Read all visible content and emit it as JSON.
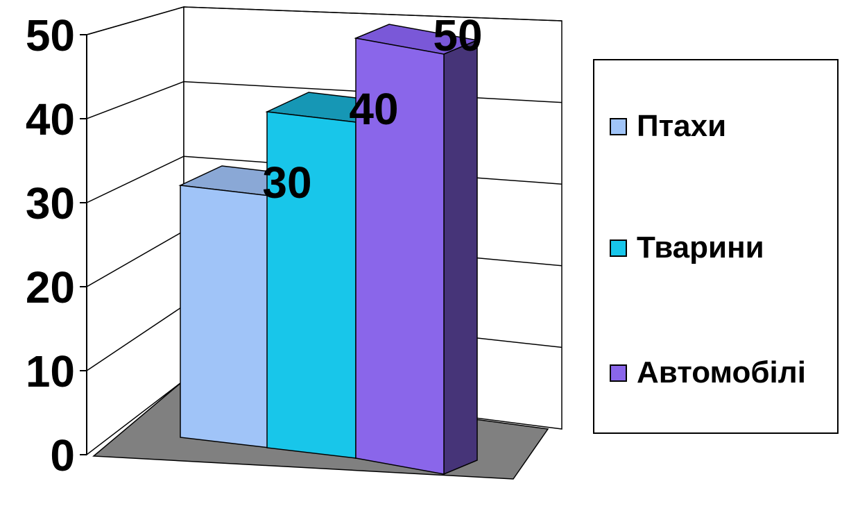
{
  "chart_data": {
    "type": "bar",
    "style": "3d-column",
    "categories": [
      ""
    ],
    "series": [
      {
        "name": "Птахи",
        "values": [
          30
        ],
        "color": "#a0c4f8"
      },
      {
        "name": "Тварини",
        "values": [
          40
        ],
        "color": "#18c6ea"
      },
      {
        "name": "Автомобілі",
        "values": [
          50
        ],
        "color": "#8a66ea"
      }
    ],
    "data_labels": [
      "30",
      "40",
      "50"
    ],
    "yticks": [
      "0",
      "10",
      "20",
      "30",
      "40",
      "50"
    ],
    "ylim": [
      0,
      50
    ],
    "grid": true,
    "legend_position": "right",
    "floor_color": "#808080"
  }
}
